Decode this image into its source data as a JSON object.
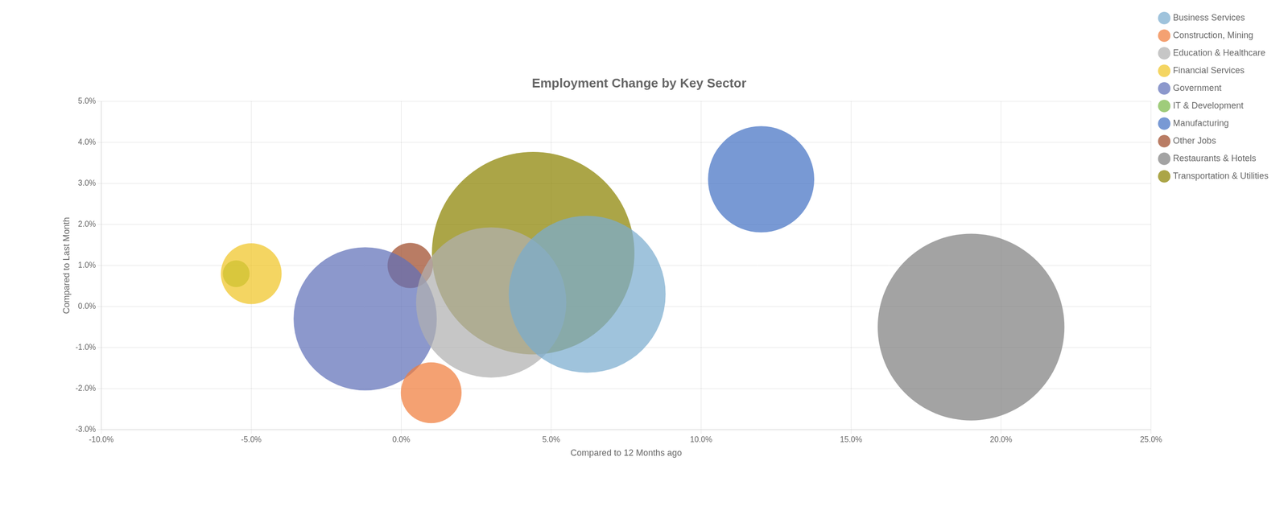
{
  "chart_data": {
    "type": "bubble",
    "title": "Employment Change by Key Sector",
    "xlabel": "Compared to 12 Months ago",
    "ylabel": "Compared to Last Month",
    "xlim": [
      -0.1,
      0.25
    ],
    "ylim": [
      -0.03,
      0.05
    ],
    "xticks": [
      {
        "value": -0.1,
        "label": "-10.0%"
      },
      {
        "value": -0.05,
        "label": "-5.0%"
      },
      {
        "value": 0.0,
        "label": "0.0%"
      },
      {
        "value": 0.05,
        "label": "5.0%"
      },
      {
        "value": 0.1,
        "label": "10.0%"
      },
      {
        "value": 0.15,
        "label": "15.0%"
      },
      {
        "value": 0.2,
        "label": "20.0%"
      },
      {
        "value": 0.25,
        "label": "25.0%"
      }
    ],
    "yticks": [
      {
        "value": -0.03,
        "label": "-3.0%"
      },
      {
        "value": -0.02,
        "label": "-2.0%"
      },
      {
        "value": -0.01,
        "label": "-1.0%"
      },
      {
        "value": 0.0,
        "label": "0.0%"
      },
      {
        "value": 0.01,
        "label": "1.0%"
      },
      {
        "value": 0.02,
        "label": "2.0%"
      },
      {
        "value": 0.03,
        "label": "3.0%"
      },
      {
        "value": 0.04,
        "label": "4.0%"
      },
      {
        "value": 0.05,
        "label": "5.0%"
      }
    ],
    "grid": true,
    "legend": "right",
    "series": [
      {
        "name": "Business Services",
        "color": "#7aaccf",
        "x": [
          0.062
        ],
        "y": [
          0.003
        ],
        "size": [
          120000
        ]
      },
      {
        "name": "Construction, Mining",
        "color": "#f07d3c",
        "x": [
          0.01
        ],
        "y": [
          -0.021
        ],
        "size": [
          18000
        ]
      },
      {
        "name": "Education & Healthcare",
        "color": "#b0b0b0",
        "x": [
          0.03
        ],
        "y": [
          0.001
        ],
        "size": [
          110000
        ]
      },
      {
        "name": "Financial Services",
        "color": "#f0c526",
        "x": [
          -0.05
        ],
        "y": [
          0.008
        ],
        "size": [
          18000
        ]
      },
      {
        "name": "Government",
        "color": "#6070b8",
        "x": [
          -0.012
        ],
        "y": [
          -0.003
        ],
        "size": [
          100000
        ]
      },
      {
        "name": "IT & Development",
        "color": "#7ab848",
        "x": [
          -0.055
        ],
        "y": [
          0.008
        ],
        "size": [
          3500
        ]
      },
      {
        "name": "Manufacturing",
        "color": "#4472c4",
        "x": [
          0.12
        ],
        "y": [
          0.031
        ],
        "size": [
          55000
        ]
      },
      {
        "name": "Other Jobs",
        "color": "#9e4a28",
        "x": [
          0.003
        ],
        "y": [
          0.01
        ],
        "size": [
          10000
        ]
      },
      {
        "name": "Restaurants & Hotels",
        "color": "#808080",
        "x": [
          0.19
        ],
        "y": [
          -0.005
        ],
        "size": [
          170000
        ]
      },
      {
        "name": "Transportation & Utilities",
        "color": "#8b8200",
        "x": [
          0.044
        ],
        "y": [
          0.013
        ],
        "size": [
          200000
        ]
      }
    ]
  }
}
